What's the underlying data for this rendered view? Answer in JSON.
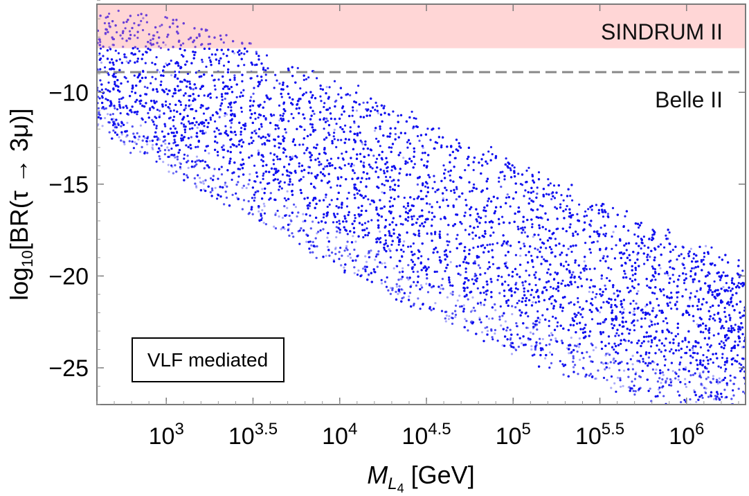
{
  "chart_data": {
    "type": "scatter",
    "title": "",
    "xlabel_main": "M",
    "xlabel_sub": "L",
    "xlabel_subsub": "4",
    "xlabel_unit": " [GeV]",
    "ylabel_pre": "log",
    "ylabel_sub": "10",
    "ylabel_post": "[BR(τ → 3μ)]",
    "x_scale": "log10",
    "xlim_log10": [
      2.6,
      6.34
    ],
    "ylim": [
      -27,
      -5.2
    ],
    "x_ticks": [
      {
        "base": "10",
        "exp": "3",
        "log10": 3.0
      },
      {
        "base": "10",
        "exp": "3.5",
        "log10": 3.5
      },
      {
        "base": "10",
        "exp": "4",
        "log10": 4.0
      },
      {
        "base": "10",
        "exp": "4.5",
        "log10": 4.5
      },
      {
        "base": "10",
        "exp": "5",
        "log10": 5.0
      },
      {
        "base": "10",
        "exp": "5.5",
        "log10": 5.5
      },
      {
        "base": "10",
        "exp": "6",
        "log10": 6.0
      }
    ],
    "y_ticks": [
      {
        "label": "−10",
        "value": -10
      },
      {
        "label": "−15",
        "value": -15
      },
      {
        "label": "−20",
        "value": -20
      },
      {
        "label": "−25",
        "value": -25
      }
    ],
    "excluded_region": {
      "name": "SINDRUM II",
      "y_from": -7.6,
      "y_to": -5.2,
      "color": "#ffd6d6"
    },
    "projected_bound": {
      "name": "Belle II",
      "y": -8.9,
      "style": "dashed",
      "color": "#888888"
    },
    "annotation": "VLF mediated",
    "series": {
      "name": "VLF mediated points",
      "color": "#1010ee",
      "upper_edge": [
        [
          2.6,
          -5.2
        ],
        [
          3.5,
          -7.3
        ],
        [
          4.0,
          -9.4
        ],
        [
          4.5,
          -11.5
        ],
        [
          5.0,
          -13.7
        ],
        [
          5.5,
          -15.8
        ],
        [
          6.0,
          -18.0
        ],
        [
          6.34,
          -19.3
        ]
      ],
      "lower_edge": [
        [
          2.6,
          -12.0
        ],
        [
          3.0,
          -14.2
        ],
        [
          3.5,
          -17.0
        ],
        [
          4.0,
          -19.5
        ],
        [
          4.5,
          -22.0
        ],
        [
          5.0,
          -24.2
        ],
        [
          5.5,
          -26.0
        ],
        [
          6.0,
          -27.0
        ],
        [
          6.34,
          -27.0
        ]
      ]
    }
  }
}
